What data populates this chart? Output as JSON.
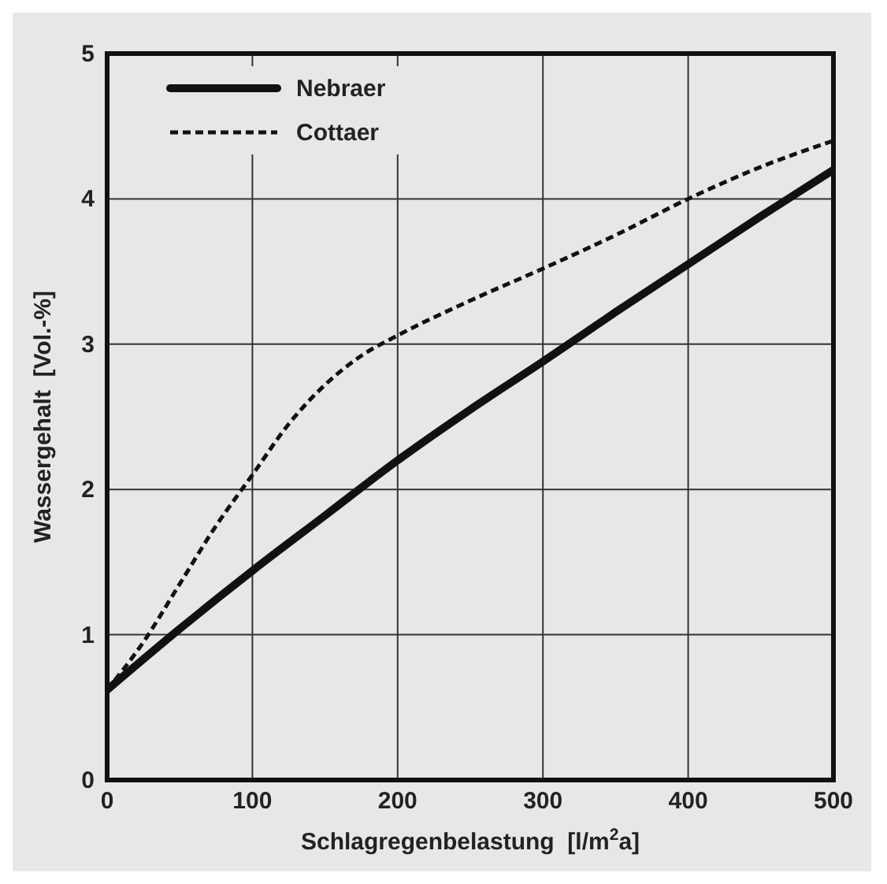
{
  "chart_data": {
    "type": "line",
    "xlabel": "Schlagregenbelastung  [l/m$^{2}$a]",
    "ylabel": "Wassergehalt  [Vol.-%]",
    "xlim": [
      0,
      500
    ],
    "ylim": [
      0,
      5
    ],
    "xticks": [
      0,
      100,
      200,
      300,
      400,
      500
    ],
    "yticks": [
      0,
      1,
      2,
      3,
      4,
      5
    ],
    "grid": true,
    "legend": "top left",
    "series": [
      {
        "name": "Nebraer",
        "color": "#111111",
        "line_style": "solid",
        "x": [
          0,
          50,
          100,
          150,
          200,
          250,
          300,
          350,
          400,
          450,
          500
        ],
        "values": [
          0.62,
          1.04,
          1.44,
          1.82,
          2.2,
          2.55,
          2.88,
          3.22,
          3.55,
          3.88,
          4.2
        ]
      },
      {
        "name": "Cottaer",
        "color": "#111111",
        "line_style": "dashed",
        "x": [
          0,
          25,
          50,
          75,
          100,
          125,
          150,
          175,
          200,
          250,
          300,
          350,
          400,
          450,
          500
        ],
        "values": [
          0.62,
          0.95,
          1.35,
          1.75,
          2.1,
          2.45,
          2.72,
          2.92,
          3.06,
          3.3,
          3.52,
          3.75,
          4.0,
          4.22,
          4.4
        ]
      }
    ]
  }
}
